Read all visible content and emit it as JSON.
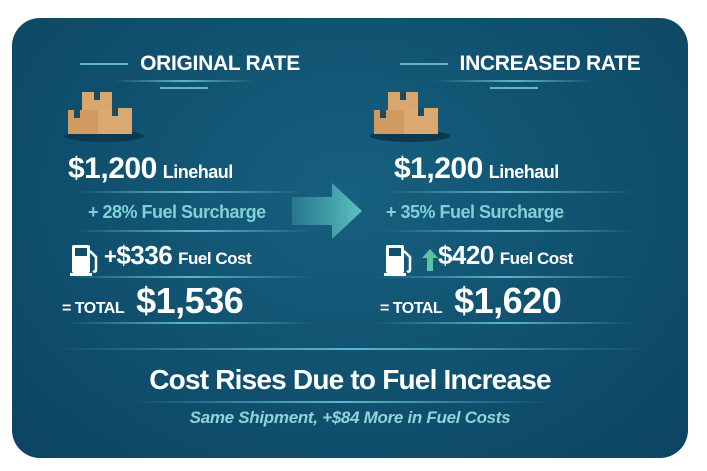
{
  "original": {
    "title": "ORIGINAL RATE",
    "linehaul_amount": "$1,200",
    "linehaul_label": "Linehaul",
    "surcharge": "+ 28% Fuel Surcharge",
    "fuel_prefix": "+",
    "fuel_amount": "$336",
    "fuel_label": "Fuel Cost",
    "total_label": "= TOTAL",
    "total_amount": "$1,536"
  },
  "increased": {
    "title": "INCREASED RATE",
    "linehaul_amount": "$1,200",
    "linehaul_label": "Linehaul",
    "surcharge": "+ 35% Fuel Surcharge",
    "fuel_amount": "$420",
    "fuel_label": "Fuel Cost",
    "total_label": "= TOTAL",
    "total_amount": "$1,620"
  },
  "headline": "Cost Rises Due to Fuel Increase",
  "subheadline": "Same Shipment, +$84 More in Fuel Costs",
  "colors": {
    "background": "#0f4f6d",
    "accent": "#7fd1d6",
    "box": "#d9a66b"
  },
  "icons": [
    "boxes-icon",
    "fuel-pump-icon",
    "arrow-right-icon",
    "up-arrow-icon"
  ]
}
